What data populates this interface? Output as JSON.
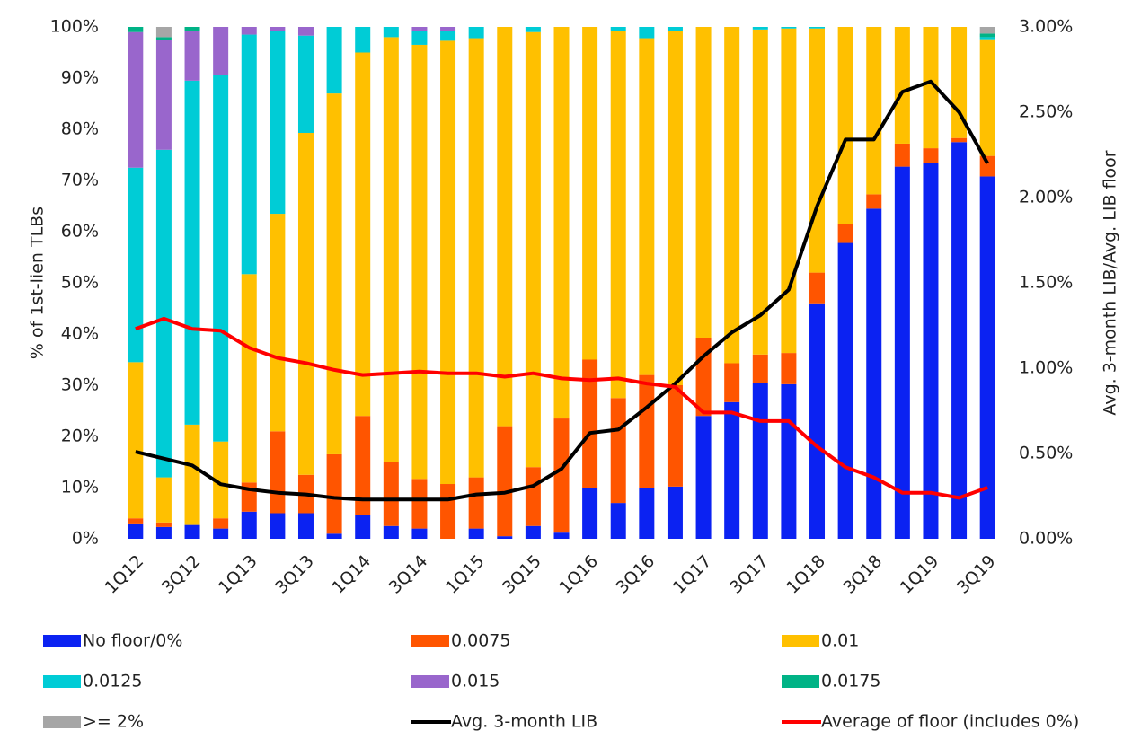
{
  "chart_data": {
    "type": "bar",
    "stacked": true,
    "ylabel": "% of 1st-lien TLBs",
    "y2label": "Avg. 3-month LIB/Avg. LIB floor",
    "categories": [
      "1Q12",
      null,
      "3Q12",
      null,
      "1Q13",
      null,
      "3Q13",
      null,
      "1Q14",
      null,
      "3Q14",
      null,
      "1Q15",
      null,
      "3Q15",
      null,
      "1Q16",
      null,
      "3Q16",
      null,
      "1Q17",
      null,
      "3Q17",
      null,
      "1Q18",
      null,
      "3Q18",
      null,
      "1Q19",
      null,
      "3Q19"
    ],
    "ylim": [
      0,
      100
    ],
    "yticks": [
      {
        "value": 0,
        "label": "0%"
      },
      {
        "value": 10,
        "label": "10%"
      },
      {
        "value": 20,
        "label": "20%"
      },
      {
        "value": 30,
        "label": "30%"
      },
      {
        "value": 40,
        "label": "40%"
      },
      {
        "value": 50,
        "label": "50%"
      },
      {
        "value": 60,
        "label": "60%"
      },
      {
        "value": 70,
        "label": "70%"
      },
      {
        "value": 80,
        "label": "80%"
      },
      {
        "value": 90,
        "label": "90%"
      },
      {
        "value": 100,
        "label": "100%"
      }
    ],
    "y2lim": [
      0,
      3
    ],
    "y2ticks": [
      {
        "value": 0,
        "label": "0.00%"
      },
      {
        "value": 0.5,
        "label": "0.50%"
      },
      {
        "value": 1,
        "label": "1.00%"
      },
      {
        "value": 1.5,
        "label": "1.50%"
      },
      {
        "value": 2,
        "label": "2.00%"
      },
      {
        "value": 2.5,
        "label": "2.50%"
      },
      {
        "value": 3,
        "label": "3.00%"
      }
    ],
    "grid": false,
    "legend": "bottom",
    "series": [
      {
        "name": "No floor/0%",
        "color": "#0b22f2",
        "values": [
          3,
          2.3,
          2.7,
          2,
          5.3,
          5,
          5,
          1,
          4.7,
          2.5,
          2,
          0,
          2,
          0.5,
          2.5,
          1.2,
          10,
          7,
          10,
          10.2,
          24,
          26.7,
          30.5,
          30.2,
          46,
          57.8,
          64.5,
          72.7,
          73.5,
          77.5,
          70.8
        ]
      },
      {
        "name": "0.0075",
        "color": "#ff5500",
        "values": [
          1,
          0.9,
          0,
          2,
          5.7,
          16,
          7.5,
          15.5,
          19.3,
          12.5,
          9.7,
          10.7,
          10,
          21.5,
          11.5,
          22.3,
          25,
          20.5,
          22,
          19.8,
          15.3,
          7.6,
          5.5,
          6.1,
          6,
          3.7,
          2.8,
          4.5,
          2.8,
          0.8,
          4
        ]
      },
      {
        "name": "0.01",
        "color": "#ffc000",
        "values": [
          30.5,
          8.8,
          19.6,
          15,
          40.7,
          42.5,
          66.8,
          70.5,
          71,
          83,
          84.8,
          86.6,
          85.8,
          78,
          85,
          76.5,
          65,
          71.8,
          65.8,
          69.3,
          60.7,
          65.7,
          63.5,
          63.4,
          47.7,
          38.5,
          32.7,
          22.8,
          23.7,
          21.7,
          22.8
        ]
      },
      {
        "name": "0.0125",
        "color": "#00ccd6",
        "values": [
          38,
          64,
          67.2,
          71.7,
          46.8,
          35.8,
          19,
          13,
          5,
          2,
          2.8,
          2,
          2.2,
          0,
          1,
          0,
          0,
          0.7,
          2.2,
          0.7,
          0,
          0,
          0.5,
          0.3,
          0.3,
          0,
          0,
          0,
          0,
          0,
          0.4
        ]
      },
      {
        "name": "0.015",
        "color": "#9966cc",
        "values": [
          26.5,
          21.5,
          9.8,
          9.3,
          1.5,
          0.7,
          1.7,
          0,
          0,
          0,
          0.7,
          0.7,
          0,
          0,
          0,
          0,
          0,
          0,
          0,
          0,
          0,
          0,
          0,
          0,
          0,
          0,
          0,
          0,
          0,
          0,
          0
        ]
      },
      {
        "name": "0.0175",
        "color": "#00b386",
        "values": [
          1,
          0.5,
          0.7,
          0,
          0,
          0,
          0,
          0,
          0,
          0,
          0,
          0,
          0,
          0,
          0,
          0,
          0,
          0,
          0,
          0,
          0,
          0,
          0,
          0,
          0,
          0,
          0,
          0,
          0,
          0,
          0.7
        ]
      },
      {
        "name": ">= 2%",
        "color": "#a6a6a6",
        "values": [
          0,
          2,
          0,
          0,
          0,
          0,
          0,
          0,
          0,
          0,
          0,
          0,
          0,
          0,
          0,
          0,
          0,
          0,
          0,
          0,
          0,
          0,
          0,
          0,
          0,
          0,
          0,
          0,
          0,
          0,
          1.3
        ]
      },
      {
        "name": "Avg. 3-month LIB",
        "type": "line",
        "axis": "y2",
        "color": "#000000",
        "values": [
          0.51,
          0.47,
          0.43,
          0.32,
          0.29,
          0.27,
          0.26,
          0.24,
          0.23,
          0.23,
          0.23,
          0.23,
          0.26,
          0.27,
          0.31,
          0.41,
          0.62,
          0.64,
          0.77,
          0.91,
          1.07,
          1.21,
          1.31,
          1.46,
          1.95,
          2.34,
          2.34,
          2.62,
          2.68,
          2.5,
          2.2
        ]
      },
      {
        "name": "Average of floor (includes 0%)",
        "type": "line",
        "axis": "y2",
        "color": "#ff0000",
        "values": [
          1.23,
          1.29,
          1.23,
          1.22,
          1.12,
          1.06,
          1.03,
          0.99,
          0.96,
          0.97,
          0.98,
          0.97,
          0.97,
          0.95,
          0.97,
          0.94,
          0.93,
          0.94,
          0.91,
          0.89,
          0.74,
          0.74,
          0.69,
          0.69,
          0.54,
          0.42,
          0.36,
          0.27,
          0.27,
          0.24,
          0.3
        ]
      }
    ]
  }
}
